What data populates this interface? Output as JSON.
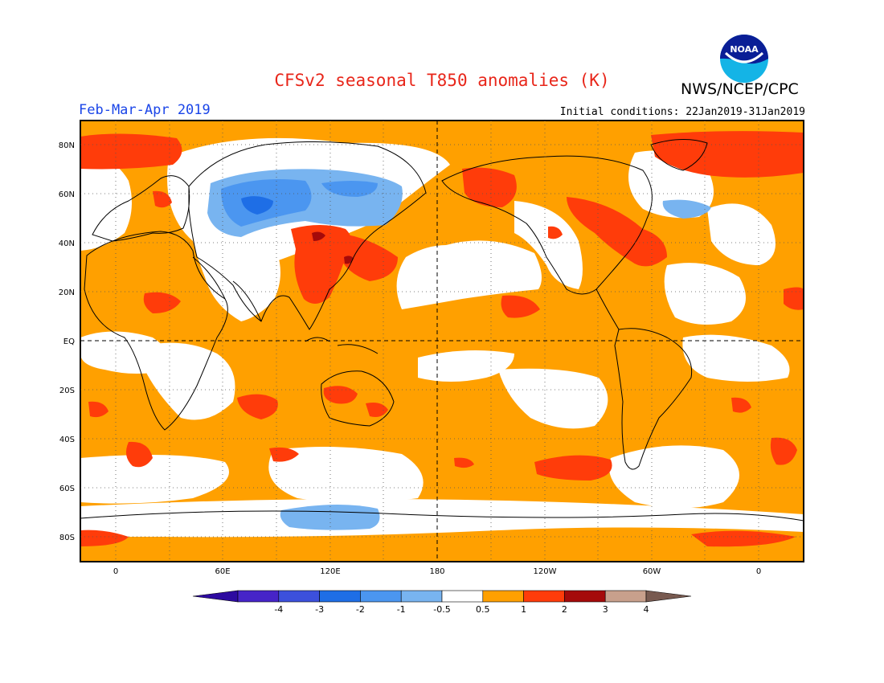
{
  "header": {
    "title": "CFSv2 seasonal T850 anomalies (K)",
    "season": "Feb-Mar-Apr 2019",
    "initial_conditions": "Initial conditions: 22Jan2019-31Jan2019",
    "agency": "NWS/NCEP/CPC",
    "logo_text": "NOAA"
  },
  "map": {
    "lat_labels": [
      "80N",
      "60N",
      "40N",
      "20N",
      "EQ",
      "20S",
      "40S",
      "60S",
      "80S"
    ],
    "lon_labels": [
      "0",
      "60E",
      "120E",
      "180",
      "120W",
      "60W",
      "0"
    ]
  },
  "legend": {
    "labels": [
      "-4",
      "-3",
      "-2",
      "-1",
      "-0.5",
      "0.5",
      "1",
      "2",
      "3",
      "4"
    ],
    "colors": [
      "#4624c8",
      "#3c50dc",
      "#1e6ee6",
      "#4b96f0",
      "#78b4f0",
      "#ffffff",
      "#ffa000",
      "#ff3c0a",
      "#a50a0a",
      "#c8a08c",
      "#785a50",
      "#2d0aa0"
    ]
  }
}
